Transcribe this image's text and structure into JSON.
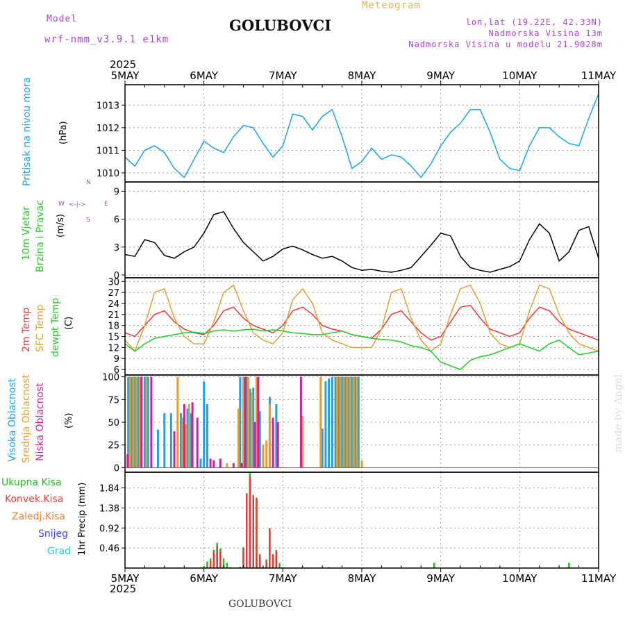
{
  "header": {
    "model_label": "Model",
    "model_name": "wrf-nmm_v3.9.1 e1km",
    "station": "GOLUBOVCI",
    "meteogram": "Meteogram",
    "lonlat": "lon,lat (19.22E, 42.33N)",
    "altitude": "Nadmorska Visina 13m",
    "model_altitude": "Nadmorska Visina u modelu 21.9028m",
    "credit": "made by Angel"
  },
  "footer": {
    "station": "GOLUBOVCI"
  },
  "colors": {
    "pressure": "#1aa3e8",
    "temp2m": "#e8393b",
    "sfc": "#e0a030",
    "dewpt": "#22cc22",
    "high": "#1aa3e8",
    "mid": "#e0a030",
    "low": "#cc2299",
    "total": "#22bb22",
    "konv": "#e8393b",
    "zaled": "#f08030",
    "snow": "#4444ee",
    "grad": "#22cccc",
    "wind_label": "#22cc22",
    "wind_compass": "#aa44cc"
  },
  "chart_data": [
    {
      "type": "line",
      "panel": "pressure",
      "year": "2025",
      "x_tick_labels": [
        "5MAY",
        "6MAY",
        "7MAY",
        "8MAY",
        "9MAY",
        "10MAY",
        "11MAY"
      ],
      "ylabel": "(hPa)",
      "side_labels": [
        "Pritisak na nivou mora"
      ],
      "ylim": [
        1009.6,
        1013.9
      ],
      "yticks": [
        1010,
        1011,
        1012,
        1013
      ],
      "series": [
        {
          "color": "#1aa3e8",
          "x": [
            0,
            3,
            6,
            9,
            12,
            15,
            18,
            21,
            24,
            27,
            30,
            33,
            36,
            39,
            42,
            45,
            48,
            51,
            54,
            57,
            60,
            63,
            66,
            69,
            72,
            75,
            78,
            81,
            84,
            87,
            90,
            93,
            96,
            99,
            102,
            105,
            108,
            111,
            114,
            117,
            120,
            123,
            126,
            129,
            132,
            135,
            138,
            141,
            144
          ],
          "values": [
            1010.7,
            1010.3,
            1011.0,
            1011.2,
            1010.9,
            1010.2,
            1009.8,
            1010.6,
            1011.4,
            1011.1,
            1010.9,
            1011.6,
            1012.1,
            1012.0,
            1011.3,
            1010.7,
            1011.2,
            1012.6,
            1012.5,
            1011.9,
            1012.5,
            1012.8,
            1011.6,
            1010.2,
            1010.5,
            1011.1,
            1010.6,
            1010.8,
            1010.7,
            1010.3,
            1009.8,
            1010.4,
            1011.2,
            1011.8,
            1012.2,
            1012.8,
            1012.8,
            1011.8,
            1010.6,
            1010.2,
            1010.1,
            1011.2,
            1012.0,
            1012.0,
            1011.6,
            1011.3,
            1011.2,
            1012.4,
            1013.5
          ]
        }
      ]
    },
    {
      "type": "line",
      "panel": "wind",
      "ylabel": "(m/s)",
      "side_labels": [
        "10m Vjetar",
        "Brzina i Pravac"
      ],
      "compass": {
        "w": "W",
        "e": "E",
        "n": "N",
        "s": "S"
      },
      "ylim": [
        -0.3,
        10
      ],
      "yticks": [
        0,
        3,
        6,
        9
      ],
      "series": [
        {
          "color": "#000000",
          "x": [
            0,
            3,
            6,
            9,
            12,
            15,
            18,
            21,
            24,
            27,
            30,
            33,
            36,
            39,
            42,
            45,
            48,
            51,
            54,
            57,
            60,
            63,
            66,
            69,
            72,
            75,
            78,
            81,
            84,
            87,
            90,
            93,
            96,
            99,
            102,
            105,
            108,
            111,
            114,
            117,
            120,
            123,
            126,
            129,
            132,
            135,
            138,
            141,
            144
          ],
          "values": [
            2.2,
            2.0,
            3.8,
            3.5,
            2.1,
            1.8,
            2.5,
            3.0,
            4.5,
            6.5,
            6.8,
            5.0,
            3.5,
            2.5,
            1.5,
            2.0,
            2.8,
            3.1,
            2.7,
            2.2,
            1.8,
            2.0,
            1.5,
            0.8,
            0.5,
            0.6,
            0.4,
            0.3,
            0.5,
            0.8,
            2.0,
            3.2,
            4.5,
            4.2,
            2.0,
            0.8,
            0.5,
            0.3,
            0.6,
            0.9,
            1.5,
            3.8,
            5.5,
            4.5,
            1.5,
            2.5,
            4.8,
            5.2,
            1.8
          ]
        }
      ]
    },
    {
      "type": "line",
      "panel": "temperature",
      "ylabel": "(C)",
      "side_labels": [
        "2m Temp",
        "SFC Temp",
        "dewpt Temp"
      ],
      "ylim": [
        4.5,
        31
      ],
      "yticks": [
        6,
        9,
        12,
        15,
        18,
        21,
        24,
        27,
        30
      ],
      "series": [
        {
          "name": "2m Temp",
          "color": "#e8393b",
          "x": [
            0,
            3,
            6,
            9,
            12,
            15,
            18,
            21,
            24,
            27,
            30,
            33,
            36,
            39,
            42,
            45,
            48,
            51,
            54,
            57,
            60,
            63,
            66,
            69,
            72,
            75,
            78,
            81,
            84,
            87,
            90,
            93,
            96,
            99,
            102,
            105,
            108,
            111,
            114,
            117,
            120,
            123,
            126,
            129,
            132,
            135,
            138,
            141,
            144
          ],
          "values": [
            16,
            15,
            18,
            21,
            22,
            19,
            17,
            16,
            15.5,
            18,
            22,
            23,
            20,
            18,
            17,
            16,
            18,
            22,
            23,
            21,
            18,
            17,
            16.5,
            15.5,
            15,
            14.5,
            17,
            21,
            22,
            19,
            16,
            14,
            15,
            19,
            23,
            23.5,
            20,
            17,
            16,
            15,
            16,
            20,
            23,
            22,
            19,
            17,
            16,
            15,
            14
          ]
        },
        {
          "name": "SFC Temp",
          "color": "#e0a030",
          "x": [
            0,
            3,
            6,
            9,
            12,
            15,
            18,
            21,
            24,
            27,
            30,
            33,
            36,
            39,
            42,
            45,
            48,
            51,
            54,
            57,
            60,
            63,
            66,
            69,
            72,
            75,
            78,
            81,
            84,
            87,
            90,
            93,
            96,
            99,
            102,
            105,
            108,
            111,
            114,
            117,
            120,
            123,
            126,
            129,
            132,
            135,
            138,
            141,
            144
          ],
          "values": [
            14,
            11,
            18,
            27,
            28,
            20,
            15,
            13,
            13,
            19,
            27,
            29,
            22,
            16,
            14,
            13,
            16,
            25,
            28,
            24,
            16,
            14,
            13,
            12,
            12,
            12,
            17,
            27,
            28,
            20,
            14,
            11,
            13,
            21,
            28,
            29,
            24,
            16,
            13,
            12,
            13,
            22,
            29,
            28,
            21,
            16,
            13,
            12,
            11
          ]
        },
        {
          "name": "dewpt Temp",
          "color": "#22cc22",
          "x": [
            0,
            3,
            6,
            9,
            12,
            15,
            18,
            21,
            24,
            27,
            30,
            33,
            36,
            39,
            42,
            45,
            48,
            51,
            54,
            57,
            60,
            63,
            66,
            69,
            72,
            75,
            78,
            81,
            84,
            87,
            90,
            93,
            96,
            99,
            102,
            105,
            108,
            111,
            114,
            117,
            120,
            123,
            126,
            129,
            132,
            135,
            138,
            141,
            144
          ],
          "values": [
            13,
            11,
            13,
            14.5,
            15,
            15.5,
            16,
            16.2,
            15.8,
            16.5,
            16.8,
            16.5,
            16.8,
            17,
            16.5,
            16.8,
            16.5,
            16,
            15.8,
            15.5,
            15.5,
            16,
            16.5,
            15.5,
            15,
            14.5,
            14.2,
            14,
            13.5,
            12.5,
            12,
            11,
            8,
            7,
            6,
            8.5,
            9.5,
            10,
            11,
            12,
            13,
            12,
            11,
            13,
            14,
            12,
            10,
            10.5,
            11
          ]
        }
      ]
    },
    {
      "type": "bar",
      "panel": "clouds",
      "ylabel": "(%)",
      "side_labels": [
        "Visoka Oblacnost",
        "Srednja Oblacnost",
        "Niska Oblacnost"
      ],
      "ylim": [
        -5,
        102
      ],
      "yticks": [
        0,
        25,
        50,
        75,
        100
      ],
      "series": [
        {
          "name": "Visoka Oblacnost",
          "color": "#1aa3e8",
          "x": [
            1,
            2,
            3,
            4,
            5,
            6,
            7,
            10,
            12,
            14,
            17,
            19,
            20,
            23,
            24,
            25,
            35,
            37,
            38,
            39,
            41,
            44,
            46,
            60,
            61,
            62,
            63,
            64,
            65,
            66,
            67,
            68,
            69,
            70,
            71
          ],
          "values": [
            100,
            100,
            100,
            100,
            100,
            100,
            100,
            42,
            60,
            60,
            60,
            65,
            60,
            10,
            95,
            70,
            100,
            100,
            87,
            88,
            62,
            78,
            70,
            43,
            95,
            98,
            100,
            100,
            100,
            100,
            100,
            100,
            100,
            100,
            100
          ]
        },
        {
          "name": "Srednja Oblacnost",
          "color": "#e0a030",
          "x": [
            1.5,
            2.5,
            3.5,
            4.5,
            6.5,
            16,
            17.5,
            18.5,
            19.5,
            31,
            34.5,
            36,
            37.5,
            38.5,
            40,
            42,
            43,
            44,
            54,
            59.5,
            64.5,
            65.5,
            66.5,
            67.5,
            68.5,
            69.5,
            70.5,
            72
          ],
          "values": [
            100,
            100,
            100,
            100,
            100,
            100,
            55,
            48,
            70,
            5,
            65,
            100,
            100,
            83,
            100,
            25,
            30,
            70,
            57,
            100,
            100,
            100,
            100,
            100,
            100,
            100,
            100,
            8
          ]
        },
        {
          "name": "Niska Oblacnost",
          "color": "#cc2299",
          "x": [
            0.8,
            5,
            8,
            15,
            18,
            20.5,
            22,
            26,
            27,
            29,
            33,
            35.5,
            36.5,
            39.5,
            40.5,
            45,
            46.5,
            53.5
          ],
          "values": [
            15,
            100,
            100,
            40,
            70,
            72,
            55,
            10,
            8,
            10,
            5,
            5,
            100,
            50,
            100,
            55,
            50,
            100
          ]
        }
      ]
    },
    {
      "type": "bar",
      "panel": "precipitation",
      "ylabel": "1hr Precip (mm)",
      "side_labels": [
        "Ukupna Kisa",
        "Konvek.Kisa",
        "Zaledj.Kisa",
        "Snijeg",
        "Grad"
      ],
      "ylim": [
        0,
        2.2
      ],
      "yticks": [
        0.46,
        0.92,
        1.38,
        1.84
      ],
      "x_tick_labels": [
        "5MAY",
        "6MAY",
        "7MAY",
        "8MAY",
        "9MAY",
        "10MAY",
        "11MAY"
      ],
      "year": "2025",
      "series": [
        {
          "name": "Ukupna Kisa",
          "color": "#22bb22",
          "x": [
            23,
            24,
            25,
            26,
            27,
            28,
            29,
            30,
            31,
            32,
            35,
            36,
            37,
            38,
            39,
            40,
            41,
            42,
            43,
            44,
            45,
            46,
            47,
            48,
            62,
            94,
            135
          ],
          "values": [
            0.02,
            0.05,
            0.15,
            0.22,
            0.42,
            0.58,
            0.45,
            0.22,
            0.12,
            0.02,
            0.03,
            0.48,
            1.72,
            2.18,
            1.68,
            1.62,
            0.32,
            0.02,
            0.2,
            0.92,
            0.32,
            0.42,
            0.12,
            0.02,
            0.02,
            0.12,
            0.12
          ]
        },
        {
          "name": "Konvek.Kisa",
          "color": "#e8393b",
          "x": [
            26,
            27,
            28,
            29,
            36,
            37,
            38,
            39,
            40,
            41,
            43,
            44,
            45,
            46
          ],
          "values": [
            0.15,
            0.35,
            0.5,
            0.38,
            0.44,
            1.7,
            2.1,
            1.65,
            1.6,
            0.28,
            0.15,
            0.9,
            0.3,
            0.4
          ]
        }
      ]
    }
  ]
}
